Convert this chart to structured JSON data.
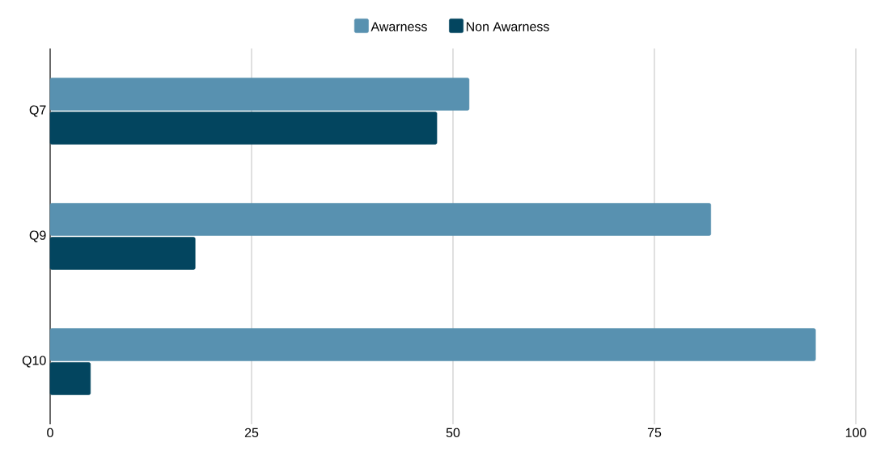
{
  "chart_data": {
    "type": "bar",
    "orientation": "horizontal",
    "categories": [
      "Q7",
      "Q9",
      "Q10"
    ],
    "series": [
      {
        "name": "Awarness",
        "color": "#5891b0",
        "values": [
          52,
          82,
          95
        ]
      },
      {
        "name": "Non Awarness",
        "color": "#03455f",
        "values": [
          48,
          18,
          5
        ]
      }
    ],
    "xlim": [
      0,
      100
    ],
    "xticks": [
      0,
      25,
      50,
      75,
      100
    ],
    "grid": "x",
    "legend": "top"
  }
}
